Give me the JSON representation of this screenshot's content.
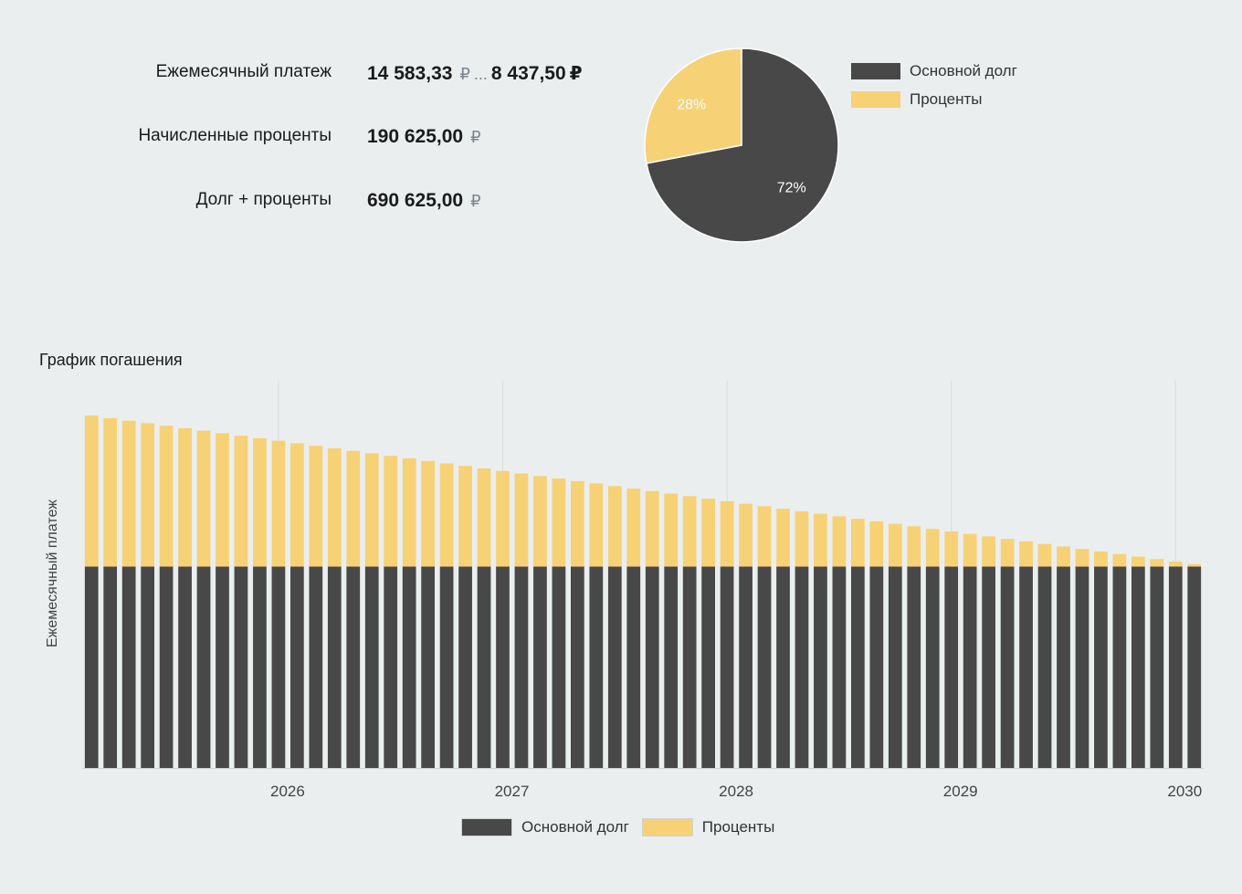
{
  "summary": {
    "monthly_label": "Ежемесячный платеж",
    "monthly_from": "14 583,33",
    "monthly_sep": "...",
    "monthly_to": "8 437,50",
    "interest_label": "Начисленные проценты",
    "interest_value": "190 625,00",
    "total_label": "Долг + проценты",
    "total_value": "690 625,00",
    "currency": "₽"
  },
  "colors": {
    "principal": "#484848",
    "interest": "#f7d176",
    "background": "#eaeeee",
    "grid": "#d8dcdc"
  },
  "chart_data": [
    {
      "type": "pie",
      "labels": [
        "Основной долг",
        "Проценты"
      ],
      "values": [
        72,
        28
      ],
      "value_labels": [
        "72%",
        "28%"
      ],
      "legend": "right"
    },
    {
      "type": "bar",
      "stacked": true,
      "title": "График погашения",
      "ylabel": "Ежемесячный платеж",
      "x_start": "2025-03",
      "x_end": "2030-02",
      "x_ticks": [
        "2026",
        "2027",
        "2028",
        "2029",
        "2030"
      ],
      "n_periods": 60,
      "series": [
        {
          "name": "Основной долг",
          "values": [
            8333.33,
            8333.33,
            8333.33,
            8333.33,
            8333.33,
            8333.33,
            8333.33,
            8333.33,
            8333.33,
            8333.33,
            8333.33,
            8333.33,
            8333.33,
            8333.33,
            8333.33,
            8333.33,
            8333.33,
            8333.33,
            8333.33,
            8333.33,
            8333.33,
            8333.33,
            8333.33,
            8333.33,
            8333.33,
            8333.33,
            8333.33,
            8333.33,
            8333.33,
            8333.33,
            8333.33,
            8333.33,
            8333.33,
            8333.33,
            8333.33,
            8333.33,
            8333.33,
            8333.33,
            8333.33,
            8333.33,
            8333.33,
            8333.33,
            8333.33,
            8333.33,
            8333.33,
            8333.33,
            8333.33,
            8333.33,
            8333.33,
            8333.33,
            8333.33,
            8333.33,
            8333.33,
            8333.33,
            8333.33,
            8333.33,
            8333.33,
            8333.33,
            8333.33,
            8333.33
          ]
        },
        {
          "name": "Проценты",
          "values": [
            6250.0,
            6145.83,
            6041.67,
            5937.5,
            5833.33,
            5729.17,
            5625.0,
            5520.83,
            5416.67,
            5312.5,
            5208.33,
            5104.17,
            5000.0,
            4895.83,
            4791.67,
            4687.5,
            4583.33,
            4479.17,
            4375.0,
            4270.83,
            4166.67,
            4062.5,
            3958.33,
            3854.17,
            3750.0,
            3645.83,
            3541.67,
            3437.5,
            3333.33,
            3229.17,
            3125.0,
            3020.83,
            2916.67,
            2812.5,
            2708.33,
            2604.17,
            2500.0,
            2395.83,
            2291.67,
            2187.5,
            2083.33,
            1979.17,
            1875.0,
            1770.83,
            1666.67,
            1562.5,
            1458.33,
            1354.17,
            1250.0,
            1145.83,
            1041.67,
            937.5,
            833.33,
            729.17,
            625.0,
            520.83,
            416.67,
            312.5,
            208.33,
            104.17
          ]
        }
      ],
      "legend": "bottom-center",
      "grid": "vertical"
    }
  ]
}
